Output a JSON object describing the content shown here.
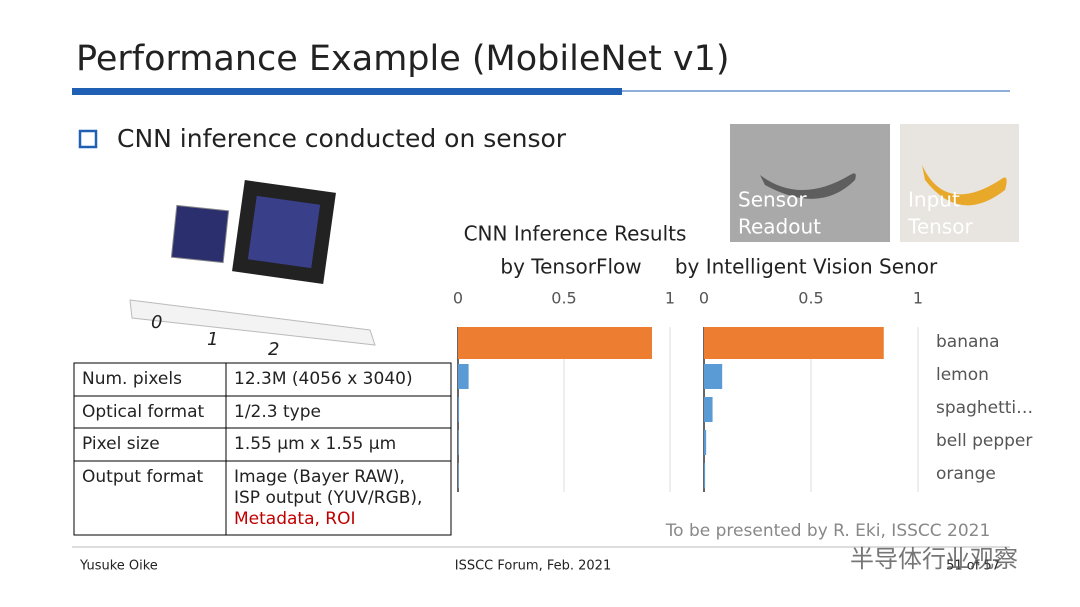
{
  "header": {
    "title": "Performance Example (MobileNet v1)"
  },
  "bullet": "CNN inference conducted on sensor",
  "ruler_labels": [
    "0",
    "1",
    "2"
  ],
  "images": [
    {
      "label": [
        "Sensor",
        "Readout"
      ]
    },
    {
      "label": [
        "Input",
        "Tensor"
      ]
    }
  ],
  "table": {
    "rows": [
      [
        "Num. pixels",
        "12.3M (4056 x 3040)"
      ],
      [
        "Optical format",
        "1/2.3 type"
      ],
      [
        "Pixel size",
        "1.55 µm x 1.55 µm"
      ],
      [
        "Output format",
        [
          "Image (Bayer RAW),",
          "ISP output (YUV/RGB),",
          "Metadata, ROI"
        ]
      ]
    ]
  },
  "chart_data": {
    "type": "bar",
    "orientation": "horizontal",
    "title": "CNN Inference Results",
    "categories": [
      "banana",
      "lemon",
      "spaghetti…",
      "bell pepper",
      "orange"
    ],
    "bar_colors": [
      "#ed7d31",
      "#5b9bd5",
      "#5b9bd5",
      "#5b9bd5",
      "#5b9bd5"
    ],
    "series": [
      {
        "name": "by TensorFlow",
        "values": [
          0.915,
          0.05,
          0.005,
          0.003,
          0.003
        ]
      },
      {
        "name": "by Intelligent Vision Senor",
        "values": [
          0.84,
          0.085,
          0.04,
          0.01,
          0.005
        ]
      }
    ],
    "xlim": [
      0,
      1
    ],
    "xticks": [
      0,
      0.5,
      1
    ],
    "grid": true
  },
  "note": "To be presented by R. Eki, ISSCC 2021",
  "footer": {
    "author": "Yusuke Oike",
    "event": "ISSCC Forum, Feb. 2021",
    "page": "51 of 57",
    "watermark": "半导体行业观察"
  }
}
